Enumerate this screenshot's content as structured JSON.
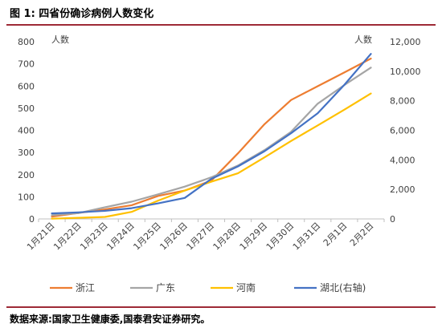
{
  "figure": {
    "title": "图 1:  四省份确诊病例人数变化",
    "source": "数据来源:国家卫生健康委,国泰君安证券研究。"
  },
  "chart_data": {
    "type": "line",
    "x": [
      "1月21日",
      "1月22日",
      "1月23日",
      "1月24日",
      "1月25日",
      "1月26日",
      "1月27日",
      "1月28日",
      "1月29日",
      "1月30日",
      "1月31日",
      "2月1日",
      "2月2日"
    ],
    "ylabel_left": "人数",
    "ylabel_right": "人数",
    "ylim_left": [
      0,
      800
    ],
    "yticks_left": [
      "0",
      "100",
      "200",
      "300",
      "400",
      "500",
      "600",
      "700",
      "800"
    ],
    "ylim_right": [
      0,
      12000
    ],
    "yticks_right": [
      "0",
      "2,000",
      "4,000",
      "6,000",
      "8,000",
      "10,000",
      "12,000"
    ],
    "legend_position": "bottom",
    "series": [
      {
        "name": "浙江",
        "axis": "left",
        "color": "#ed7d31",
        "values": [
          10,
          27,
          43,
          62,
          104,
          128,
          173,
          296,
          428,
          537,
          599,
          661,
          724
        ]
      },
      {
        "name": "广东",
        "axis": "left",
        "color": "#a5a5a5",
        "values": [
          17,
          26,
          53,
          78,
          111,
          146,
          188,
          241,
          311,
          393,
          520,
          604,
          683
        ]
      },
      {
        "name": "河南",
        "axis": "left",
        "color": "#ffc000",
        "values": [
          1,
          5,
          9,
          32,
          83,
          128,
          168,
          206,
          278,
          352,
          422,
          493,
          566
        ]
      },
      {
        "name": "湖北(右轴)",
        "axis": "right",
        "color": "#4472c4",
        "values": [
          375,
          444,
          549,
          729,
          1052,
          1423,
          2714,
          3554,
          4586,
          5806,
          7153,
          9074,
          11177
        ]
      }
    ]
  }
}
